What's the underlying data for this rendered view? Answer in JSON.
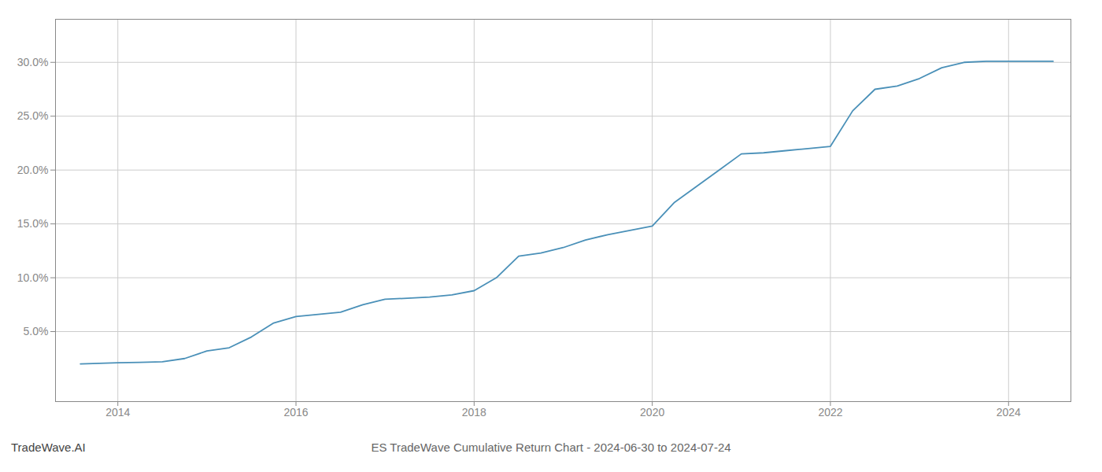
{
  "chart_data": {
    "type": "line",
    "title": "ES TradeWave Cumulative Return Chart - 2024-06-30 to 2024-07-24",
    "annotations": [
      "TradeWave.AI"
    ],
    "color": "#4a90b8",
    "grid": true,
    "x": [
      2013.58,
      2014.0,
      2014.25,
      2014.5,
      2014.75,
      2015.0,
      2015.25,
      2015.5,
      2015.75,
      2016.0,
      2016.25,
      2016.5,
      2016.75,
      2017.0,
      2017.25,
      2017.5,
      2017.75,
      2018.0,
      2018.25,
      2018.5,
      2018.75,
      2019.0,
      2019.25,
      2019.5,
      2019.75,
      2020.0,
      2020.25,
      2020.5,
      2020.75,
      2021.0,
      2021.25,
      2021.5,
      2021.75,
      2022.0,
      2022.25,
      2022.5,
      2022.75,
      2023.0,
      2023.25,
      2023.5,
      2023.75,
      2024.0,
      2024.25,
      2024.5
    ],
    "values": [
      2.0,
      2.1,
      2.15,
      2.2,
      2.5,
      3.2,
      3.5,
      4.5,
      5.8,
      6.4,
      6.6,
      6.8,
      7.5,
      8.0,
      8.1,
      8.2,
      8.4,
      8.8,
      10.0,
      12.0,
      12.3,
      12.8,
      13.5,
      14.0,
      14.4,
      14.8,
      17.0,
      18.5,
      20.0,
      21.5,
      21.6,
      21.8,
      22.0,
      22.2,
      25.5,
      27.5,
      27.8,
      28.5,
      29.5,
      30.0,
      30.1,
      30.1,
      30.1,
      30.1
    ],
    "xlim": [
      2013.3,
      2024.7
    ],
    "ylim": [
      -1.5,
      34
    ],
    "xticks": [
      2014,
      2016,
      2018,
      2020,
      2022,
      2024
    ],
    "yticks": [
      {
        "value": 5.0,
        "label": "5.0%"
      },
      {
        "value": 10.0,
        "label": "10.0%"
      },
      {
        "value": 15.0,
        "label": "15.0%"
      },
      {
        "value": 20.0,
        "label": "20.0%"
      },
      {
        "value": 25.0,
        "label": "25.0%"
      },
      {
        "value": 30.0,
        "label": "30.0%"
      }
    ]
  }
}
